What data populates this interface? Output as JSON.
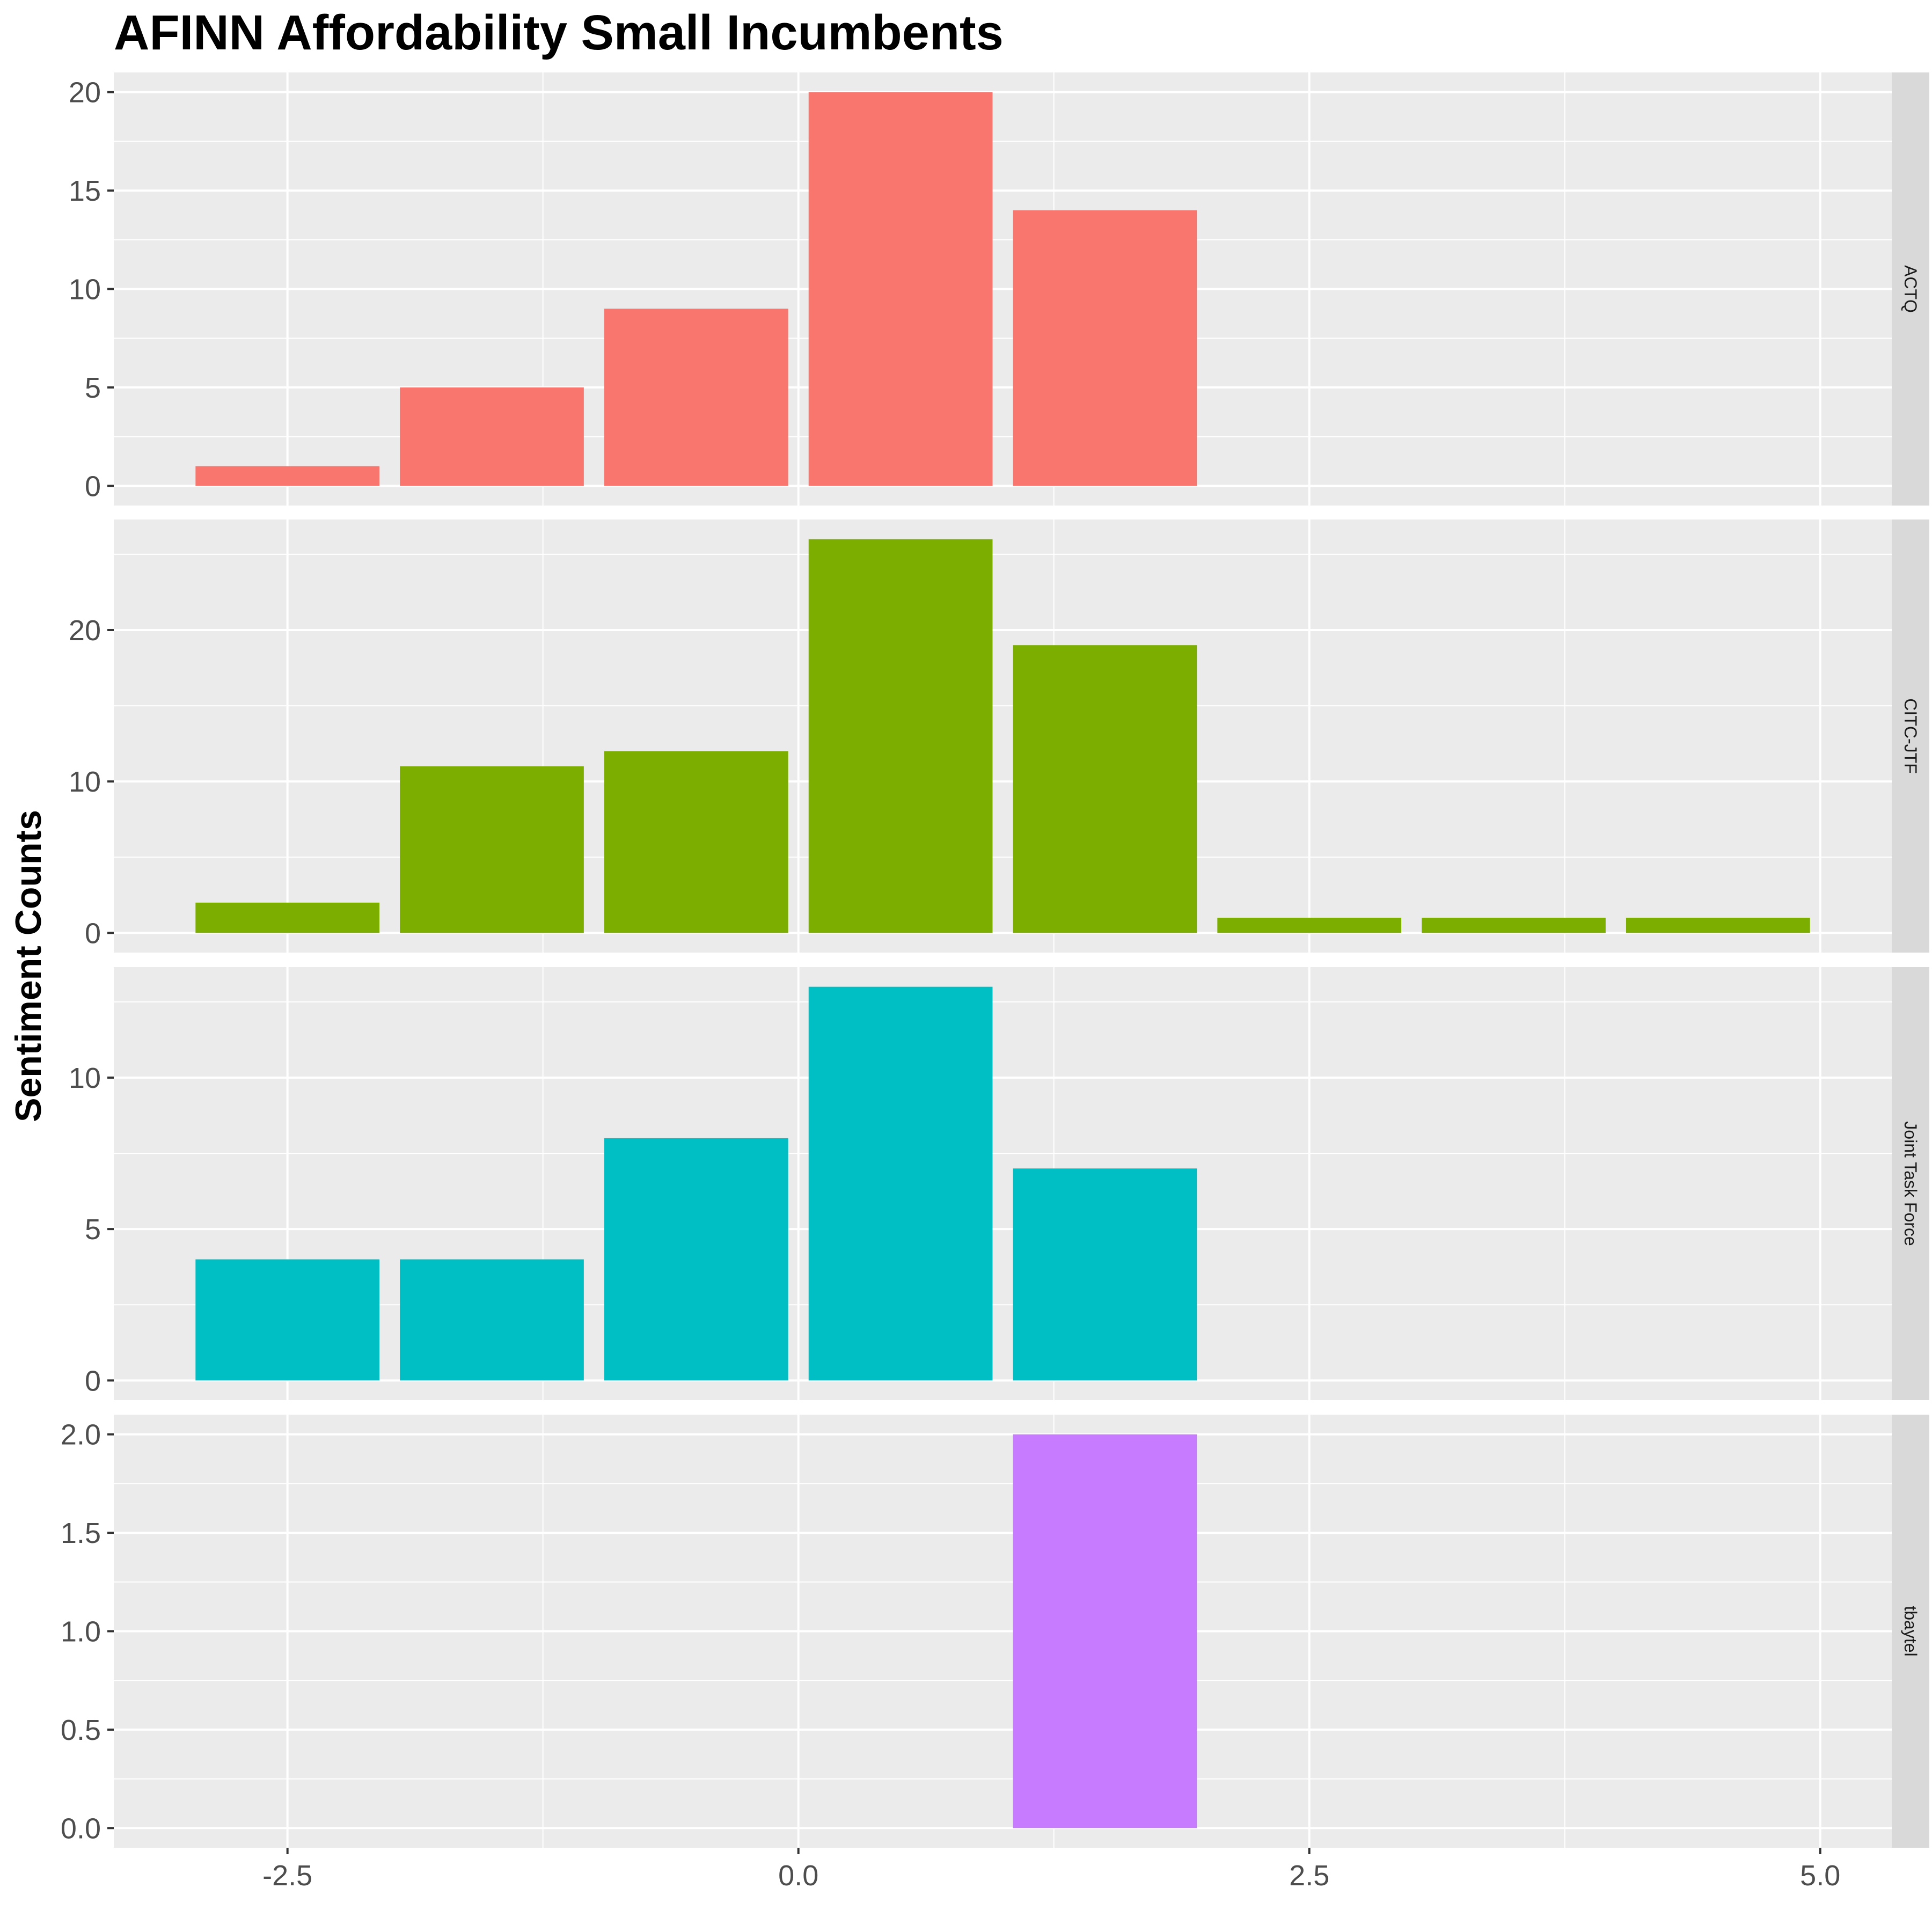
{
  "chart_data": {
    "type": "bar",
    "title": "AFINN Affordability Small Incumbents",
    "xlabel": "",
    "ylabel": "Sentiment Counts",
    "grid": true,
    "legend": "none",
    "facet": "rows",
    "xlim": [
      -3.35,
      5.35
    ],
    "x_ticks": [
      -2.5,
      0.0,
      2.5,
      5.0
    ],
    "x_tick_labels": [
      "-2.5",
      "0.0",
      "2.5",
      "5.0"
    ],
    "bar_width": 0.9,
    "x": [
      -2.5,
      -1.5,
      -0.5,
      0.5,
      1.5,
      2.5,
      3.5,
      4.5
    ],
    "series": [
      {
        "name": "ACTQ",
        "color": "#F8766D",
        "values": [
          1,
          5,
          9,
          20,
          14,
          0,
          0,
          0
        ],
        "ylim": [
          -1,
          21
        ],
        "y_ticks": [
          0,
          5,
          10,
          15,
          20
        ],
        "y_tick_labels": [
          "0",
          "5",
          "10",
          "15",
          "20"
        ]
      },
      {
        "name": "CITC-JTF",
        "color": "#7CAE00",
        "values": [
          2,
          11,
          12,
          26,
          19,
          1,
          1,
          1
        ],
        "ylim": [
          -1.3,
          27.3
        ],
        "y_ticks": [
          0,
          10,
          20
        ],
        "y_tick_labels": [
          "0",
          "10",
          "20"
        ]
      },
      {
        "name": "Joint Task Force",
        "color": "#00BFC4",
        "values": [
          4,
          4,
          8,
          13,
          7,
          0,
          0,
          0
        ],
        "ylim": [
          -0.65,
          13.65
        ],
        "y_ticks": [
          0,
          5,
          10
        ],
        "y_tick_labels": [
          "0",
          "5",
          "10"
        ]
      },
      {
        "name": "tbaytel",
        "color": "#C77CFF",
        "values": [
          0,
          0,
          0,
          0,
          2,
          0,
          0,
          0
        ],
        "ylim": [
          -0.1,
          2.1
        ],
        "y_ticks": [
          0,
          0.5,
          1.0,
          1.5,
          2.0
        ],
        "y_tick_labels": [
          "0.0",
          "0.5",
          "1.0",
          "1.5",
          "2.0"
        ]
      }
    ]
  }
}
